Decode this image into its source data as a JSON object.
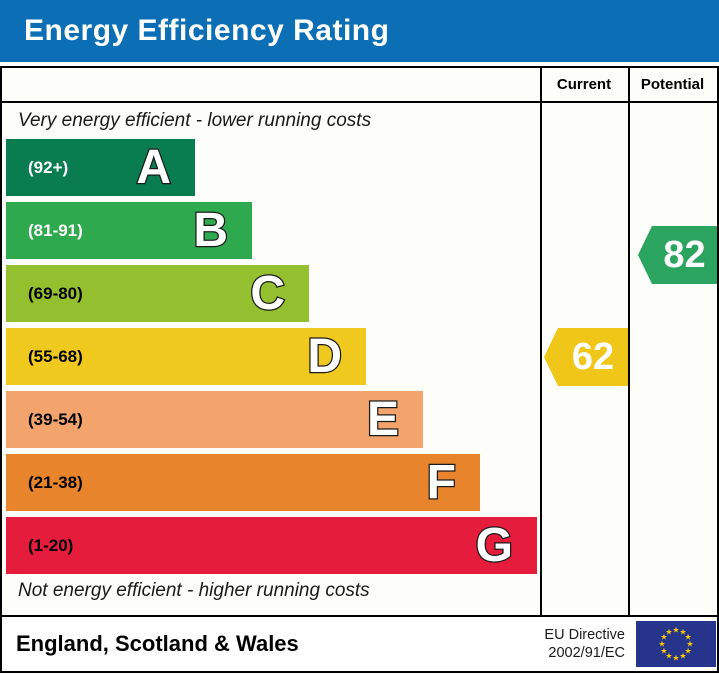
{
  "title": "Energy Efficiency Rating",
  "columns": {
    "current": "Current",
    "potential": "Potential"
  },
  "notes": {
    "top": "Very energy efficient - lower running costs",
    "bottom": "Not energy efficient - higher running costs"
  },
  "bands": [
    {
      "letter": "A",
      "range": "(92+)",
      "color": "#0a7d50",
      "range_color": "#ffffff"
    },
    {
      "letter": "B",
      "range": "(81-91)",
      "color": "#2fa94e",
      "range_color": "#ffffff"
    },
    {
      "letter": "C",
      "range": "(69-80)",
      "color": "#94c02f",
      "range_color": "#000000"
    },
    {
      "letter": "D",
      "range": "(55-68)",
      "color": "#f0c91f",
      "range_color": "#000000"
    },
    {
      "letter": "E",
      "range": "(39-54)",
      "color": "#f3a46c",
      "range_color": "#000000"
    },
    {
      "letter": "F",
      "range": "(21-38)",
      "color": "#e8852c",
      "range_color": "#000000"
    },
    {
      "letter": "G",
      "range": "(1-20)",
      "color": "#e51c3c",
      "range_color": "#000000"
    }
  ],
  "ratings": {
    "current": {
      "value": "62",
      "color": "#f0c619"
    },
    "potential": {
      "value": "82",
      "color": "#2aa45f"
    }
  },
  "footer": {
    "region": "England, Scotland & Wales",
    "directive_line1": "EU Directive",
    "directive_line2": "2002/91/EC",
    "flag_bg": "#26348c",
    "flag_star_color": "#ffcc00"
  },
  "theme": {
    "title_bg": "#0c6fb6",
    "title_color": "#ffffff",
    "border_color": "#000000"
  },
  "chart_data": {
    "type": "bar",
    "title": "Energy Efficiency Rating",
    "categories": [
      "A",
      "B",
      "C",
      "D",
      "E",
      "F",
      "G"
    ],
    "band_ranges": [
      "92+",
      "81-91",
      "69-80",
      "55-68",
      "39-54",
      "21-38",
      "1-20"
    ],
    "band_colors": [
      "#0a7d50",
      "#2fa94e",
      "#94c02f",
      "#f0c91f",
      "#f3a46c",
      "#e8852c",
      "#e51c3c"
    ],
    "series": [
      {
        "name": "Current",
        "value": 62,
        "band": "D",
        "color": "#f0c619"
      },
      {
        "name": "Potential",
        "value": 82,
        "band": "B",
        "color": "#2aa45f"
      }
    ],
    "annotations": [
      "Very energy efficient - lower running costs",
      "Not energy efficient - higher running costs"
    ],
    "scale_min": 1,
    "scale_max": 100,
    "grid": false,
    "legend_position": "none"
  }
}
